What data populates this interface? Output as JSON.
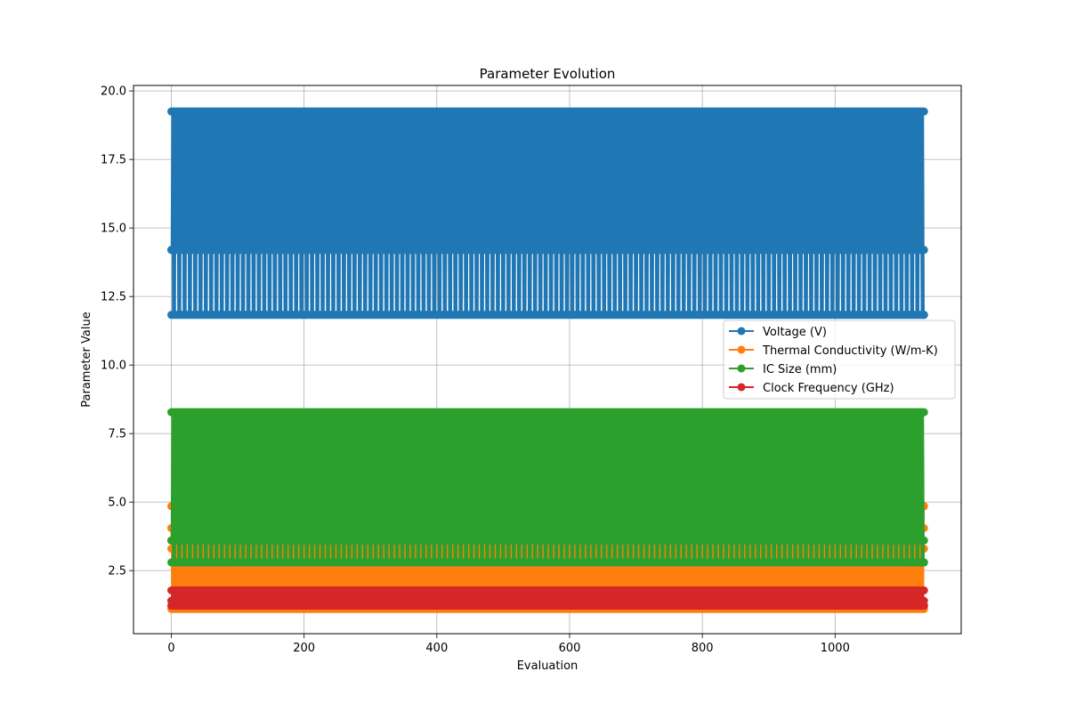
{
  "chart_data": {
    "type": "line",
    "title": "Parameter Evolution",
    "xlabel": "Evaluation",
    "ylabel": "Parameter Value",
    "xlim": [
      -57,
      1190
    ],
    "ylim": [
      0.2,
      20.2
    ],
    "xticks": [
      0,
      200,
      400,
      600,
      800,
      1000
    ],
    "yticks": [
      2.5,
      5.0,
      7.5,
      10.0,
      12.5,
      15.0,
      17.5,
      20.0
    ],
    "xtick_labels": [
      "0",
      "200",
      "400",
      "600",
      "800",
      "1000"
    ],
    "ytick_labels": [
      "2.5",
      "5.0",
      "7.5",
      "10.0",
      "12.5",
      "15.0",
      "17.5",
      "20.0"
    ],
    "grid": true,
    "legend_position": "center-right",
    "num_evaluations": 1135,
    "series": [
      {
        "name": "Voltage (V)",
        "color": "#1f77b4",
        "marker": "circle",
        "cycle_values": [
          14.2,
          19.25,
          11.83,
          19.25,
          11.83,
          19.25,
          11.83,
          19.25
        ]
      },
      {
        "name": "Thermal Conductivity (W/m-K)",
        "color": "#ff7f0e",
        "marker": "circle",
        "cycle_values": [
          4.05,
          1.1,
          4.85,
          1.1,
          3.3,
          1.1,
          4.85,
          1.1
        ]
      },
      {
        "name": "IC Size (mm)",
        "color": "#2ca02c",
        "marker": "circle",
        "cycle_values": [
          3.6,
          8.28,
          2.8,
          8.28,
          2.8,
          8.28,
          2.8,
          8.28
        ]
      },
      {
        "name": "Clock Frequency (GHz)",
        "color": "#d62728",
        "marker": "circle",
        "cycle_values": [
          1.4,
          1.78,
          1.22,
          1.78,
          1.22,
          1.78,
          1.22,
          1.78
        ]
      }
    ]
  }
}
